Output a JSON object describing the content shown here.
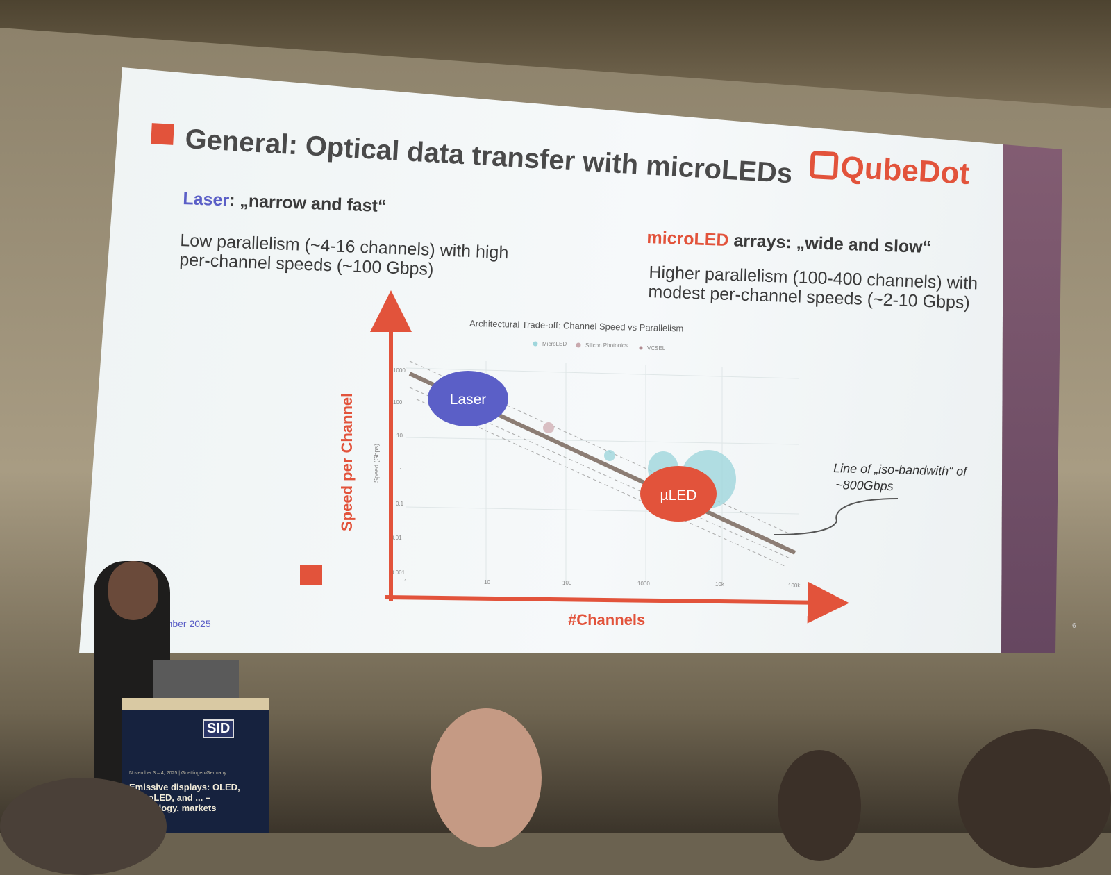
{
  "slide": {
    "title": "General: Optical data transfer with microLEDs",
    "logo": "QubeDot",
    "laser": {
      "keyword": "Laser",
      "heading_rest": ": „narrow and fast“",
      "line1": "Low parallelism (~4-16 channels) with high",
      "line2": "per-channel speeds (~100 Gbps)"
    },
    "microled": {
      "keyword": "microLED",
      "heading_rest": " arrays: „wide and slow“",
      "line1": "Higher parallelism (100-400 channels) with",
      "line2": "modest per-channel speeds (~2-10 Gbps)"
    },
    "date": "November 2025",
    "page": "6",
    "colors": {
      "accent": "#e2533b",
      "laser": "#5b5fc7",
      "microled_series": "#9fd6dc"
    }
  },
  "chart": {
    "title": "Architectural Trade-off: Channel Speed vs Parallelism",
    "legend": [
      "MicroLED",
      "Silicon Photonics",
      "VCSEL"
    ],
    "ylabel_small": "Speed (Gbps)",
    "ylabel_big": "Speed per Channel",
    "xlabel_big": "#Channels",
    "y_ticks": [
      "1000",
      "100",
      "10",
      "1",
      "0.1",
      "0.01",
      "0.001"
    ],
    "x_ticks": [
      "1",
      "10",
      "100",
      "1000",
      "10k",
      "100k"
    ],
    "x_scale": "log",
    "y_scale": "log",
    "laser_label": "Laser",
    "mled_label": "µLED",
    "annotation_line1": "Line of „iso-bandwith“ of",
    "annotation_line2": "~800Gbps"
  },
  "podium": {
    "brand": "SID",
    "date": "November 3 – 4, 2025 | Goettingen/Germany",
    "title": "Emissive displays: OLED, microLED, and ... – technology, markets"
  }
}
